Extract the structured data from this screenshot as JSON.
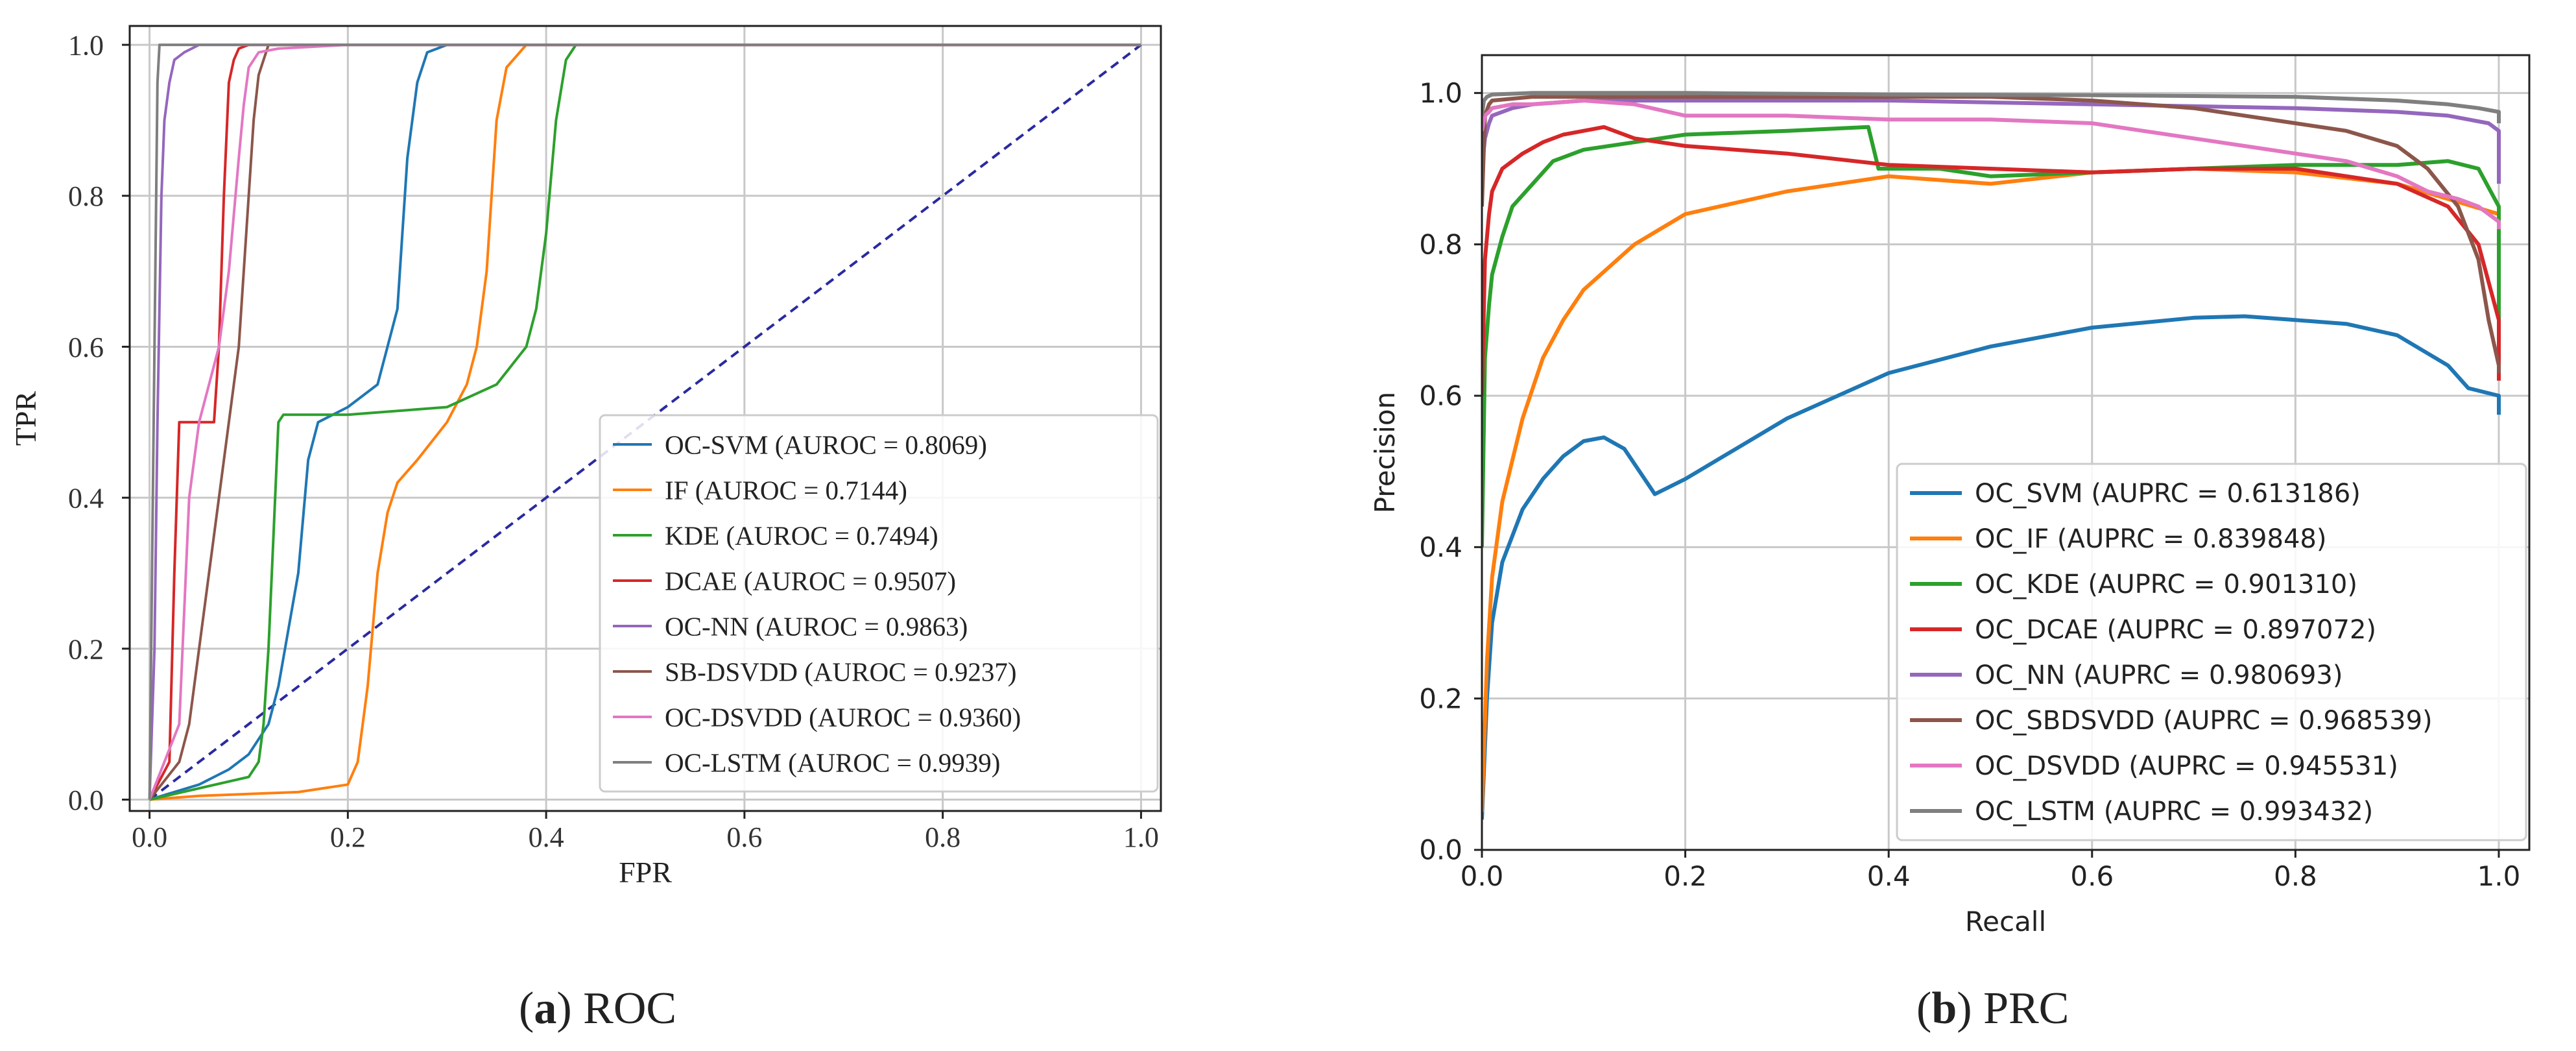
{
  "chart_data": [
    {
      "type": "line",
      "panel_letter": "a",
      "panel_name": "ROC",
      "xlabel": "FPR",
      "ylabel": "TPR",
      "xlim": [
        -0.02,
        1.02
      ],
      "ylim": [
        -0.015,
        1.025
      ],
      "xticks": [
        "0.0",
        "0.2",
        "0.4",
        "0.6",
        "0.8",
        "1.0"
      ],
      "yticks": [
        "0.0",
        "0.2",
        "0.4",
        "0.6",
        "0.8",
        "1.0"
      ],
      "grid": true,
      "legend_position": "lower-right",
      "series": [
        {
          "name": "OC-SVM",
          "legend": "OC-SVM (AUROC = 0.8069)",
          "color": "#1f77b4",
          "x": [
            0,
            0.05,
            0.08,
            0.1,
            0.12,
            0.13,
            0.15,
            0.16,
            0.17,
            0.2,
            0.23,
            0.24,
            0.25,
            0.255,
            0.26,
            0.27,
            0.28,
            0.3,
            1
          ],
          "y": [
            0,
            0.02,
            0.04,
            0.06,
            0.1,
            0.15,
            0.3,
            0.45,
            0.5,
            0.52,
            0.55,
            0.6,
            0.65,
            0.75,
            0.85,
            0.95,
            0.99,
            1,
            1
          ]
        },
        {
          "name": "IF",
          "legend": "IF (AUROC = 0.7144)",
          "color": "#ff7f0e",
          "x": [
            0,
            0.05,
            0.15,
            0.2,
            0.21,
            0.22,
            0.23,
            0.24,
            0.25,
            0.27,
            0.3,
            0.32,
            0.33,
            0.34,
            0.345,
            0.35,
            0.36,
            0.38,
            1
          ],
          "y": [
            0,
            0.005,
            0.01,
            0.02,
            0.05,
            0.15,
            0.3,
            0.38,
            0.42,
            0.45,
            0.5,
            0.55,
            0.6,
            0.7,
            0.8,
            0.9,
            0.97,
            1,
            1
          ]
        },
        {
          "name": "KDE",
          "legend": "KDE (AUROC = 0.7494)",
          "color": "#2ca02c",
          "x": [
            0,
            0.1,
            0.11,
            0.115,
            0.12,
            0.125,
            0.13,
            0.135,
            0.2,
            0.3,
            0.35,
            0.38,
            0.39,
            0.4,
            0.41,
            0.42,
            0.43,
            1
          ],
          "y": [
            0,
            0.03,
            0.05,
            0.1,
            0.2,
            0.35,
            0.5,
            0.51,
            0.51,
            0.52,
            0.55,
            0.6,
            0.65,
            0.75,
            0.9,
            0.98,
            1,
            1
          ]
        },
        {
          "name": "DCAE",
          "legend": "DCAE (AUROC = 0.9507)",
          "color": "#d62728",
          "x": [
            0,
            0.02,
            0.025,
            0.03,
            0.065,
            0.07,
            0.075,
            0.08,
            0.085,
            0.09,
            0.1,
            1
          ],
          "y": [
            0,
            0.05,
            0.3,
            0.5,
            0.5,
            0.6,
            0.8,
            0.95,
            0.98,
            0.995,
            1,
            1
          ]
        },
        {
          "name": "OC-NN",
          "legend": "OC-NN (AUROC = 0.9863)",
          "color": "#9467bd",
          "x": [
            0,
            0.005,
            0.008,
            0.012,
            0.015,
            0.02,
            0.025,
            0.035,
            0.05,
            0.1,
            1
          ],
          "y": [
            0,
            0.2,
            0.5,
            0.8,
            0.9,
            0.95,
            0.98,
            0.99,
            1,
            1,
            1
          ]
        },
        {
          "name": "SB-DSVDD",
          "legend": "SB-DSVDD (AUROC = 0.9237)",
          "color": "#8c564b",
          "x": [
            0,
            0.03,
            0.04,
            0.05,
            0.06,
            0.07,
            0.08,
            0.09,
            0.1,
            0.105,
            0.11,
            0.12,
            1
          ],
          "y": [
            0,
            0.05,
            0.1,
            0.2,
            0.3,
            0.4,
            0.5,
            0.6,
            0.8,
            0.9,
            0.96,
            1,
            1
          ]
        },
        {
          "name": "OC-DSVDD",
          "legend": "OC-DSVDD (AUROC = 0.9360)",
          "color": "#e377c2",
          "x": [
            0,
            0.03,
            0.04,
            0.05,
            0.06,
            0.07,
            0.08,
            0.09,
            0.095,
            0.1,
            0.11,
            0.13,
            0.2,
            1
          ],
          "y": [
            0,
            0.1,
            0.4,
            0.5,
            0.55,
            0.6,
            0.7,
            0.85,
            0.92,
            0.97,
            0.99,
            0.995,
            1,
            1
          ]
        },
        {
          "name": "OC-LSTM",
          "legend": "OC-LSTM (AUROC = 0.9939)",
          "color": "#7f7f7f",
          "x": [
            0,
            0.005,
            0.008,
            0.01,
            1
          ],
          "y": [
            0,
            0.6,
            0.95,
            1,
            1
          ]
        }
      ],
      "reference_line": {
        "x": [
          0,
          1
        ],
        "y": [
          0,
          1
        ],
        "color": "#2a2aa0",
        "style": "dashed"
      }
    },
    {
      "type": "line",
      "panel_letter": "b",
      "panel_name": "PRC",
      "xlabel": "Recall",
      "ylabel": "Precision",
      "xlim": [
        0,
        1.03
      ],
      "ylim": [
        0,
        1.05
      ],
      "xticks": [
        "0.0",
        "0.2",
        "0.4",
        "0.6",
        "0.8",
        "1.0"
      ],
      "yticks": [
        "0.0",
        "0.2",
        "0.4",
        "0.6",
        "0.8",
        "1.0"
      ],
      "grid": true,
      "legend_position": "lower-right",
      "series": [
        {
          "name": "OC_SVM",
          "legend": "OC_SVM (AUPRC = 0.613186)",
          "color": "#1f77b4",
          "x": [
            0,
            0.005,
            0.01,
            0.02,
            0.04,
            0.06,
            0.08,
            0.1,
            0.12,
            0.14,
            0.16,
            0.17,
            0.2,
            0.25,
            0.3,
            0.4,
            0.5,
            0.6,
            0.7,
            0.75,
            0.8,
            0.85,
            0.9,
            0.95,
            0.97,
            1,
            1
          ],
          "y": [
            0.04,
            0.2,
            0.3,
            0.38,
            0.45,
            0.49,
            0.52,
            0.54,
            0.545,
            0.53,
            0.49,
            0.47,
            0.49,
            0.53,
            0.57,
            0.63,
            0.665,
            0.69,
            0.703,
            0.705,
            0.7,
            0.695,
            0.68,
            0.64,
            0.61,
            0.6,
            0.575
          ]
        },
        {
          "name": "OC_IF",
          "legend": "OC_IF (AUPRC = 0.839848)",
          "color": "#ff7f0e",
          "x": [
            0,
            0.005,
            0.01,
            0.02,
            0.04,
            0.06,
            0.08,
            0.1,
            0.15,
            0.2,
            0.3,
            0.4,
            0.5,
            0.6,
            0.7,
            0.8,
            0.9,
            0.95,
            1,
            1
          ],
          "y": [
            0.05,
            0.25,
            0.36,
            0.46,
            0.57,
            0.65,
            0.7,
            0.74,
            0.8,
            0.84,
            0.87,
            0.89,
            0.88,
            0.895,
            0.9,
            0.895,
            0.88,
            0.86,
            0.84,
            0.82
          ]
        },
        {
          "name": "OC_KDE",
          "legend": "OC_KDE (AUPRC = 0.901310)",
          "color": "#2ca02c",
          "x": [
            0,
            0.003,
            0.007,
            0.01,
            0.02,
            0.03,
            0.05,
            0.07,
            0.1,
            0.15,
            0.2,
            0.3,
            0.38,
            0.39,
            0.45,
            0.5,
            0.6,
            0.7,
            0.8,
            0.9,
            0.95,
            0.98,
            1,
            1
          ],
          "y": [
            0.4,
            0.65,
            0.72,
            0.76,
            0.81,
            0.85,
            0.88,
            0.91,
            0.925,
            0.935,
            0.945,
            0.95,
            0.955,
            0.9,
            0.9,
            0.89,
            0.895,
            0.9,
            0.905,
            0.905,
            0.91,
            0.9,
            0.85,
            0.7
          ]
        },
        {
          "name": "OC_DCAE",
          "legend": "OC_DCAE (AUPRC = 0.897072)",
          "color": "#d62728",
          "x": [
            0,
            0.003,
            0.007,
            0.01,
            0.02,
            0.04,
            0.06,
            0.08,
            0.1,
            0.12,
            0.15,
            0.2,
            0.3,
            0.4,
            0.5,
            0.6,
            0.7,
            0.8,
            0.9,
            0.95,
            0.98,
            1,
            1
          ],
          "y": [
            0.6,
            0.78,
            0.84,
            0.87,
            0.9,
            0.92,
            0.935,
            0.945,
            0.95,
            0.955,
            0.94,
            0.93,
            0.92,
            0.905,
            0.9,
            0.895,
            0.9,
            0.9,
            0.88,
            0.85,
            0.8,
            0.7,
            0.62
          ]
        },
        {
          "name": "OC_NN",
          "legend": "OC_NN (AUPRC = 0.980693)",
          "color": "#9467bd",
          "x": [
            0,
            0.003,
            0.007,
            0.01,
            0.03,
            0.05,
            0.1,
            0.2,
            0.4,
            0.6,
            0.8,
            0.9,
            0.95,
            0.99,
            1,
            1
          ],
          "y": [
            0.9,
            0.94,
            0.96,
            0.97,
            0.98,
            0.985,
            0.99,
            0.99,
            0.99,
            0.985,
            0.98,
            0.975,
            0.97,
            0.96,
            0.95,
            0.88
          ]
        },
        {
          "name": "OC_SBDSVDD",
          "legend": "OC_SBDSVDD (AUPRC = 0.968539)",
          "color": "#8c564b",
          "x": [
            0,
            0.003,
            0.007,
            0.01,
            0.05,
            0.1,
            0.3,
            0.5,
            0.6,
            0.65,
            0.7,
            0.75,
            0.8,
            0.85,
            0.9,
            0.93,
            0.96,
            0.98,
            0.99,
            1,
            1
          ],
          "y": [
            0.85,
            0.97,
            0.985,
            0.99,
            0.995,
            0.995,
            0.995,
            0.995,
            0.99,
            0.985,
            0.98,
            0.97,
            0.96,
            0.95,
            0.93,
            0.9,
            0.85,
            0.78,
            0.7,
            0.64,
            0.63
          ]
        },
        {
          "name": "OC_DSVDD",
          "legend": "OC_DSVDD (AUPRC = 0.945531)",
          "color": "#e377c2",
          "x": [
            0,
            0.003,
            0.007,
            0.01,
            0.03,
            0.05,
            0.1,
            0.15,
            0.2,
            0.3,
            0.4,
            0.5,
            0.6,
            0.65,
            0.7,
            0.75,
            0.8,
            0.85,
            0.9,
            0.93,
            0.96,
            0.98,
            1,
            1
          ],
          "y": [
            0.95,
            0.97,
            0.975,
            0.98,
            0.985,
            0.985,
            0.99,
            0.985,
            0.97,
            0.97,
            0.965,
            0.965,
            0.96,
            0.95,
            0.94,
            0.93,
            0.92,
            0.91,
            0.89,
            0.87,
            0.86,
            0.85,
            0.83,
            0.82
          ]
        },
        {
          "name": "OC_LSTM",
          "legend": "OC_LSTM (AUPRC = 0.993432)",
          "color": "#7f7f7f",
          "x": [
            0,
            0.002,
            0.005,
            0.01,
            0.05,
            0.2,
            0.4,
            0.6,
            0.8,
            0.9,
            0.95,
            0.98,
            1,
            1
          ],
          "y": [
            0.97,
            0.99,
            0.995,
            0.998,
            1,
            1,
            0.998,
            0.997,
            0.995,
            0.99,
            0.985,
            0.98,
            0.975,
            0.96
          ]
        }
      ]
    }
  ]
}
